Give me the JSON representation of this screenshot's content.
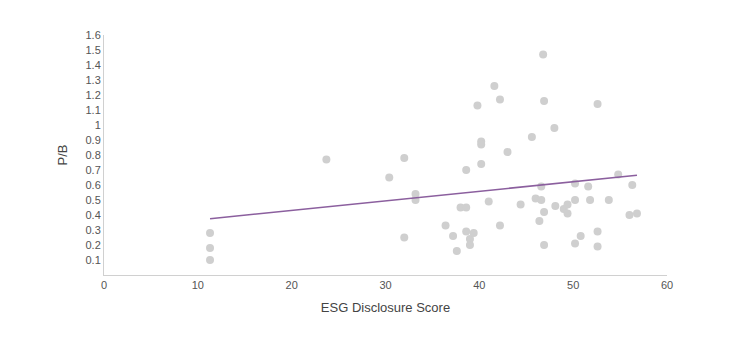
{
  "chart_data": {
    "type": "scatter",
    "x_label": "ESG Disclosure Score",
    "y_label": "P/B",
    "xlim": [
      0,
      60
    ],
    "xticks": [
      0,
      10,
      20,
      30,
      40,
      50,
      60
    ],
    "ylim": [
      0,
      1.6
    ],
    "yticks": [
      0.1,
      0.2,
      0.3,
      0.4,
      0.5,
      0.6,
      0.7,
      0.8,
      0.9,
      1,
      1.1,
      1.2,
      1.3,
      1.4,
      1.5,
      1.6
    ],
    "grid": false,
    "series": [
      {
        "type": "scatter",
        "marker": "circle",
        "color": "#cfcfcf",
        "x": [
          11.3,
          11.3,
          11.3,
          23.7,
          30.4,
          32,
          32,
          33.2,
          33.2,
          36.4,
          37.2,
          37.6,
          38,
          38.6,
          38.6,
          38.6,
          39,
          39,
          39.4,
          39.8,
          40.2,
          40.2,
          40.2,
          41,
          41.6,
          42.2,
          42.2,
          43,
          44.4,
          45.6,
          46,
          46.4,
          46.6,
          46.6,
          46.8,
          46.9,
          46.9,
          46.9,
          48,
          48.1,
          49,
          49.4,
          49.4,
          50.2,
          50.2,
          50.2,
          50.8,
          51.6,
          51.8,
          52.6,
          52.6,
          52.6,
          53.8,
          54.8,
          56,
          56.3,
          56.8
        ],
        "values": [
          0.28,
          0.18,
          0.1,
          0.77,
          0.65,
          0.78,
          0.25,
          0.54,
          0.5,
          0.33,
          0.26,
          0.16,
          0.45,
          0.29,
          0.45,
          0.7,
          0.24,
          0.2,
          0.28,
          1.13,
          0.89,
          0.87,
          0.74,
          0.49,
          1.26,
          1.17,
          0.33,
          0.82,
          0.47,
          0.92,
          0.51,
          0.36,
          0.59,
          0.5,
          1.47,
          1.16,
          0.42,
          0.2,
          0.98,
          0.46,
          0.44,
          0.47,
          0.41,
          0.61,
          0.5,
          0.21,
          0.26,
          0.59,
          0.5,
          1.14,
          0.29,
          0.19,
          0.5,
          0.67,
          0.4,
          0.6,
          0.41
        ]
      },
      {
        "type": "line",
        "line_style": "solid",
        "color": "#8b5f9e",
        "x": [
          11.3,
          56.8
        ],
        "values": [
          0.375,
          0.665
        ]
      }
    ]
  }
}
